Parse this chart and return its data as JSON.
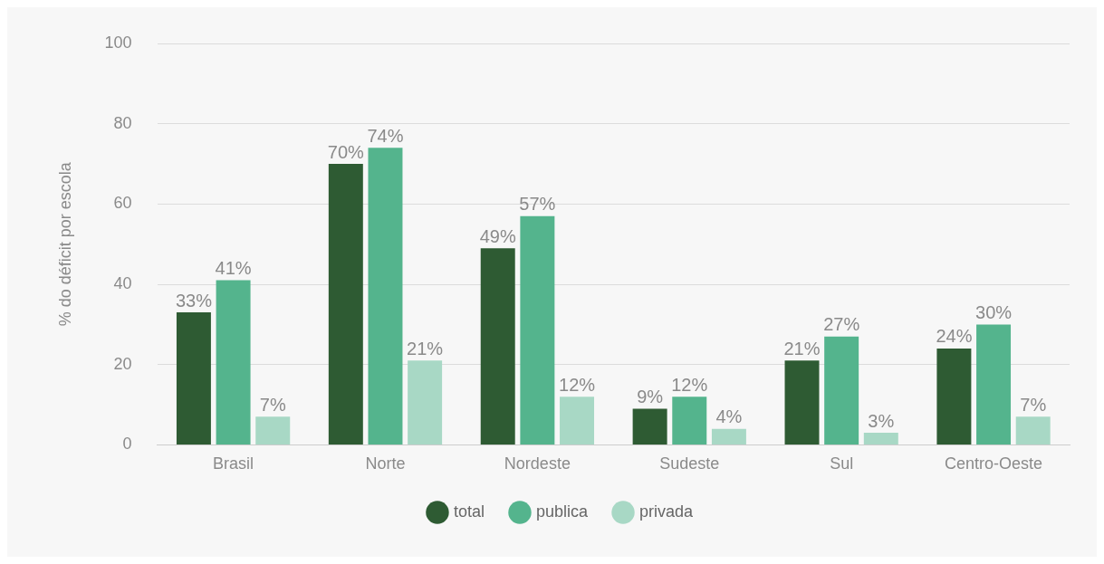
{
  "chart_data": {
    "type": "bar",
    "ylabel": "% do déficit por escola",
    "categories": [
      "Brasil",
      "Norte",
      "Nordeste",
      "Sudeste",
      "Sul",
      "Centro-Oeste"
    ],
    "series": [
      {
        "name": "total",
        "color": "#2e5b33",
        "values": [
          33,
          70,
          49,
          9,
          21,
          24
        ],
        "value_labels": [
          "33%",
          "70%",
          "49%",
          "9%",
          "21%",
          "24%"
        ]
      },
      {
        "name": "publica",
        "color": "#54b48d",
        "values": [
          41,
          74,
          57,
          12,
          27,
          30
        ],
        "value_labels": [
          "41%",
          "74%",
          "57%",
          "12%",
          "27%",
          "30%"
        ]
      },
      {
        "name": "privada",
        "color": "#a8d8c5",
        "values": [
          7,
          21,
          12,
          4,
          3,
          7
        ],
        "value_labels": [
          "7%",
          "21%",
          "12%",
          "4%",
          "3%",
          "7%"
        ]
      }
    ],
    "ylim": [
      0,
      100
    ],
    "yticks": [
      0,
      20,
      40,
      60,
      80,
      100
    ],
    "grid": "y",
    "legend": "bottom"
  }
}
